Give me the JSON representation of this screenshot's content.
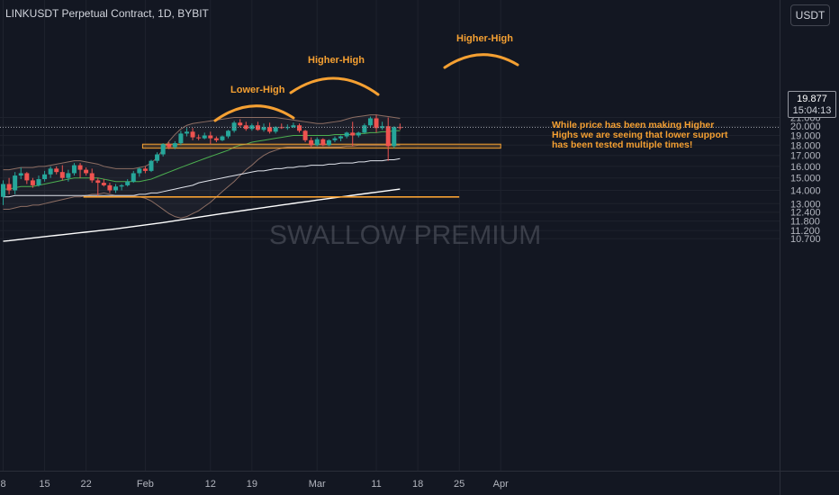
{
  "header": {
    "symbol_title": "LINKUSDT Perpetual Contract, 1D, BYBIT",
    "currency_button": "USDT"
  },
  "price_tag": {
    "price": "19.877",
    "countdown": "15:04:13"
  },
  "watermark": "SWALLOW PREMIUM",
  "annotations": {
    "lower_high": "Lower-High",
    "higher_high_1": "Higher-High",
    "higher_high_2": "Higher-High",
    "note": "While price has been making Higher\nHighs we are seeing that lower support\nhas been tested multiple times!"
  },
  "colors": {
    "background": "#131722",
    "up": "#26a69a",
    "down": "#ef5350",
    "annotation": "#f5a032",
    "bb_basis": "#4caf50",
    "bb_band": "#8d6e63",
    "ma": "#e0e3eb"
  },
  "chart_data": {
    "type": "candlestick",
    "title": "LINKUSDT Perpetual Contract, 1D, BYBIT",
    "y_scale": "log",
    "ylim": [
      10.4,
      22.3
    ],
    "y_ticks": [
      21.0,
      20.0,
      19.0,
      18.0,
      17.0,
      16.0,
      15.0,
      14.0,
      13.0,
      12.4,
      11.8,
      11.2,
      10.7
    ],
    "y_tick_labels": [
      "21.000",
      "20.000",
      "19.000",
      "18.000",
      "17.000",
      "16.000",
      "15.000",
      "14.000",
      "13.000",
      "12.400",
      "11.800",
      "11.200",
      "10.700"
    ],
    "x_tick_labels": [
      "8",
      "15",
      "22",
      "Feb",
      "12",
      "19",
      "Mar",
      "11",
      "18",
      "25",
      "Apr"
    ],
    "x_tick_dates": [
      "2024-01-08",
      "2024-01-15",
      "2024-01-22",
      "2024-02-01",
      "2024-02-12",
      "2024-02-19",
      "2024-03-01",
      "2024-03-11",
      "2024-03-18",
      "2024-03-25",
      "2024-04-01"
    ],
    "last_price": 19.877,
    "candles": [
      {
        "date": "2024-01-08",
        "o": 13.5,
        "h": 14.8,
        "l": 12.9,
        "c": 14.5
      },
      {
        "date": "2024-01-09",
        "o": 14.5,
        "h": 15.0,
        "l": 13.7,
        "c": 14.0
      },
      {
        "date": "2024-01-10",
        "o": 14.0,
        "h": 15.5,
        "l": 13.7,
        "c": 15.2
      },
      {
        "date": "2024-01-11",
        "o": 15.2,
        "h": 15.9,
        "l": 14.9,
        "c": 15.4
      },
      {
        "date": "2024-01-12",
        "o": 15.4,
        "h": 15.5,
        "l": 14.5,
        "c": 14.8
      },
      {
        "date": "2024-01-13",
        "o": 14.8,
        "h": 15.0,
        "l": 14.2,
        "c": 14.4
      },
      {
        "date": "2024-01-14",
        "o": 14.4,
        "h": 15.2,
        "l": 14.3,
        "c": 14.9
      },
      {
        "date": "2024-01-15",
        "o": 14.9,
        "h": 15.6,
        "l": 14.7,
        "c": 15.3
      },
      {
        "date": "2024-01-16",
        "o": 15.3,
        "h": 16.0,
        "l": 15.0,
        "c": 15.8
      },
      {
        "date": "2024-01-17",
        "o": 15.8,
        "h": 16.0,
        "l": 15.3,
        "c": 15.5
      },
      {
        "date": "2024-01-18",
        "o": 15.5,
        "h": 16.1,
        "l": 14.8,
        "c": 15.0
      },
      {
        "date": "2024-01-19",
        "o": 15.0,
        "h": 15.7,
        "l": 14.7,
        "c": 15.4
      },
      {
        "date": "2024-01-20",
        "o": 15.4,
        "h": 16.3,
        "l": 15.2,
        "c": 16.1
      },
      {
        "date": "2024-01-21",
        "o": 16.1,
        "h": 16.3,
        "l": 15.0,
        "c": 15.7
      },
      {
        "date": "2024-01-22",
        "o": 15.7,
        "h": 15.9,
        "l": 15.2,
        "c": 15.4
      },
      {
        "date": "2024-01-23",
        "o": 15.4,
        "h": 15.8,
        "l": 14.6,
        "c": 14.8
      },
      {
        "date": "2024-01-24",
        "o": 14.8,
        "h": 15.0,
        "l": 13.6,
        "c": 14.6
      },
      {
        "date": "2024-01-25",
        "o": 14.6,
        "h": 14.9,
        "l": 14.3,
        "c": 14.4
      },
      {
        "date": "2024-01-26",
        "o": 14.4,
        "h": 14.6,
        "l": 13.8,
        "c": 14.0
      },
      {
        "date": "2024-01-27",
        "o": 14.0,
        "h": 14.5,
        "l": 13.8,
        "c": 14.3
      },
      {
        "date": "2024-01-28",
        "o": 14.3,
        "h": 14.5,
        "l": 14.0,
        "c": 14.4
      },
      {
        "date": "2024-01-29",
        "o": 14.4,
        "h": 14.9,
        "l": 14.3,
        "c": 14.7
      },
      {
        "date": "2024-01-30",
        "o": 14.7,
        "h": 15.6,
        "l": 14.6,
        "c": 15.4
      },
      {
        "date": "2024-01-31",
        "o": 15.4,
        "h": 15.9,
        "l": 15.1,
        "c": 15.8
      },
      {
        "date": "2024-02-01",
        "o": 15.8,
        "h": 16.0,
        "l": 15.4,
        "c": 15.6
      },
      {
        "date": "2024-02-02",
        "o": 15.6,
        "h": 16.6,
        "l": 15.5,
        "c": 16.5
      },
      {
        "date": "2024-02-03",
        "o": 16.5,
        "h": 17.3,
        "l": 16.3,
        "c": 17.1
      },
      {
        "date": "2024-02-04",
        "o": 17.1,
        "h": 18.2,
        "l": 16.9,
        "c": 18.1
      },
      {
        "date": "2024-02-05",
        "o": 18.1,
        "h": 18.3,
        "l": 17.6,
        "c": 17.8
      },
      {
        "date": "2024-02-06",
        "o": 17.8,
        "h": 18.4,
        "l": 17.6,
        "c": 18.2
      },
      {
        "date": "2024-02-07",
        "o": 18.2,
        "h": 19.5,
        "l": 18.0,
        "c": 19.2
      },
      {
        "date": "2024-02-08",
        "o": 19.2,
        "h": 19.8,
        "l": 18.9,
        "c": 19.4
      },
      {
        "date": "2024-02-09",
        "o": 19.4,
        "h": 19.8,
        "l": 18.5,
        "c": 18.8
      },
      {
        "date": "2024-02-10",
        "o": 18.8,
        "h": 19.1,
        "l": 18.5,
        "c": 18.7
      },
      {
        "date": "2024-02-11",
        "o": 18.7,
        "h": 19.3,
        "l": 18.6,
        "c": 19.0
      },
      {
        "date": "2024-02-12",
        "o": 19.0,
        "h": 19.4,
        "l": 18.1,
        "c": 18.7
      },
      {
        "date": "2024-02-13",
        "o": 18.7,
        "h": 18.9,
        "l": 18.3,
        "c": 18.5
      },
      {
        "date": "2024-02-14",
        "o": 18.5,
        "h": 19.0,
        "l": 18.4,
        "c": 18.9
      },
      {
        "date": "2024-02-15",
        "o": 18.9,
        "h": 19.6,
        "l": 18.7,
        "c": 19.5
      },
      {
        "date": "2024-02-16",
        "o": 19.5,
        "h": 20.6,
        "l": 19.3,
        "c": 20.4
      },
      {
        "date": "2024-02-17",
        "o": 20.4,
        "h": 20.8,
        "l": 19.9,
        "c": 20.1
      },
      {
        "date": "2024-02-18",
        "o": 20.1,
        "h": 20.5,
        "l": 19.5,
        "c": 19.7
      },
      {
        "date": "2024-02-19",
        "o": 19.7,
        "h": 20.3,
        "l": 19.5,
        "c": 20.1
      },
      {
        "date": "2024-02-20",
        "o": 20.1,
        "h": 20.5,
        "l": 19.5,
        "c": 19.6
      },
      {
        "date": "2024-02-21",
        "o": 19.6,
        "h": 20.3,
        "l": 19.4,
        "c": 19.9
      },
      {
        "date": "2024-02-22",
        "o": 19.9,
        "h": 20.4,
        "l": 19.2,
        "c": 19.4
      },
      {
        "date": "2024-02-23",
        "o": 19.4,
        "h": 20.0,
        "l": 19.2,
        "c": 19.9
      },
      {
        "date": "2024-02-24",
        "o": 19.9,
        "h": 20.3,
        "l": 19.7,
        "c": 19.8
      },
      {
        "date": "2024-02-25",
        "o": 19.8,
        "h": 20.2,
        "l": 19.6,
        "c": 19.9
      },
      {
        "date": "2024-02-26",
        "o": 19.9,
        "h": 20.4,
        "l": 19.8,
        "c": 20.1
      },
      {
        "date": "2024-02-27",
        "o": 20.1,
        "h": 20.3,
        "l": 19.3,
        "c": 19.5
      },
      {
        "date": "2024-02-28",
        "o": 19.5,
        "h": 19.6,
        "l": 18.3,
        "c": 18.5
      },
      {
        "date": "2024-02-29",
        "o": 18.5,
        "h": 18.8,
        "l": 17.8,
        "c": 18.0
      },
      {
        "date": "2024-03-01",
        "o": 18.0,
        "h": 18.8,
        "l": 17.9,
        "c": 18.6
      },
      {
        "date": "2024-03-02",
        "o": 18.6,
        "h": 18.7,
        "l": 17.9,
        "c": 18.0
      },
      {
        "date": "2024-03-03",
        "o": 18.0,
        "h": 18.6,
        "l": 17.9,
        "c": 18.5
      },
      {
        "date": "2024-03-04",
        "o": 18.5,
        "h": 18.9,
        "l": 18.3,
        "c": 18.7
      },
      {
        "date": "2024-03-05",
        "o": 18.7,
        "h": 19.0,
        "l": 18.4,
        "c": 18.9
      },
      {
        "date": "2024-03-06",
        "o": 18.9,
        "h": 19.4,
        "l": 18.7,
        "c": 19.3
      },
      {
        "date": "2024-03-07",
        "o": 19.3,
        "h": 20.5,
        "l": 17.9,
        "c": 19.0
      },
      {
        "date": "2024-03-08",
        "o": 19.0,
        "h": 19.4,
        "l": 18.8,
        "c": 19.3
      },
      {
        "date": "2024-03-09",
        "o": 19.3,
        "h": 20.3,
        "l": 19.2,
        "c": 20.1
      },
      {
        "date": "2024-03-10",
        "o": 20.1,
        "h": 21.1,
        "l": 19.9,
        "c": 20.9
      },
      {
        "date": "2024-03-11",
        "o": 20.9,
        "h": 21.3,
        "l": 19.3,
        "c": 19.8
      },
      {
        "date": "2024-03-12",
        "o": 19.8,
        "h": 20.5,
        "l": 19.6,
        "c": 20.0
      },
      {
        "date": "2024-03-13",
        "o": 20.0,
        "h": 21.0,
        "l": 16.5,
        "c": 17.9
      },
      {
        "date": "2024-03-14",
        "o": 17.9,
        "h": 20.0,
        "l": 17.7,
        "c": 19.9
      },
      {
        "date": "2024-03-15",
        "o": 19.9,
        "h": 20.3,
        "l": 19.6,
        "c": 19.877
      }
    ],
    "series": [
      {
        "name": "",
        "type": "line",
        "y": [
          14.1,
          14.1,
          14.2,
          14.3,
          14.3,
          14.3,
          14.4,
          14.5,
          14.6,
          14.7,
          14.8,
          14.9,
          15.0,
          15.0,
          15.0,
          15.0,
          15.0,
          14.9,
          14.8,
          14.7,
          14.7,
          14.7,
          14.7,
          14.7,
          14.8,
          14.9,
          15.1,
          15.3,
          15.5,
          15.7,
          15.9,
          16.1,
          16.3,
          16.5,
          16.7,
          16.9,
          17.1,
          17.3,
          17.5,
          17.8,
          18.0,
          18.1,
          18.3,
          18.4,
          18.5,
          18.6,
          18.7,
          18.8,
          18.9,
          19.0,
          19.0,
          19.0,
          19.0,
          19.0,
          19.0,
          19.0,
          19.1,
          19.1,
          19.1,
          19.1,
          19.2,
          19.2,
          19.3,
          19.3,
          19.4,
          19.4,
          19.5,
          19.5
        ]
      },
      {
        "name": "",
        "type": "line",
        "y": [
          15.7,
          15.7,
          15.8,
          15.9,
          15.9,
          15.9,
          16.0,
          16.0,
          16.1,
          16.2,
          16.3,
          16.4,
          16.5,
          16.5,
          16.4,
          16.3,
          16.2,
          16.0,
          15.9,
          15.8,
          15.8,
          15.8,
          15.8,
          15.9,
          16.0,
          16.3,
          16.8,
          17.6,
          18.4,
          19.1,
          19.7,
          20.1,
          20.3,
          20.4,
          20.5,
          20.6,
          20.7,
          20.8,
          20.9,
          21.0,
          21.0,
          21.0,
          21.0,
          21.0,
          21.0,
          21.0,
          21.0,
          20.9,
          20.8,
          20.7,
          20.6,
          20.5,
          20.4,
          20.3,
          20.3,
          20.4,
          20.5,
          20.6,
          20.8,
          21.0,
          21.1,
          21.2,
          21.3,
          21.3,
          21.2,
          21.1,
          21.0,
          20.9
        ]
      },
      {
        "name": "",
        "type": "line",
        "y": [
          12.6,
          12.6,
          12.7,
          12.8,
          12.8,
          12.9,
          12.9,
          13.0,
          13.1,
          13.2,
          13.3,
          13.4,
          13.5,
          13.5,
          13.6,
          13.7,
          13.7,
          13.8,
          13.7,
          13.6,
          13.6,
          13.6,
          13.6,
          13.5,
          13.4,
          13.2,
          12.9,
          12.6,
          12.3,
          12.1,
          12.0,
          12.1,
          12.3,
          12.5,
          12.8,
          13.1,
          13.5,
          13.9,
          14.3,
          14.7,
          15.2,
          15.7,
          16.1,
          16.6,
          17.0,
          17.3,
          17.5,
          17.7,
          17.8,
          17.8,
          17.8,
          17.8,
          17.8,
          17.8,
          17.8,
          17.8,
          17.8,
          17.8,
          17.9,
          17.9,
          18.0,
          18.0,
          18.0,
          18.0,
          18.0,
          18.0,
          18.0,
          18.0
        ]
      },
      {
        "name": "",
        "type": "line",
        "y": [
          13.5,
          13.5,
          13.6,
          13.6,
          13.6,
          13.6,
          13.6,
          13.6,
          13.6,
          13.6,
          13.6,
          13.6,
          13.6,
          13.6,
          13.6,
          13.6,
          13.6,
          13.6,
          13.6,
          13.6,
          13.6,
          13.6,
          13.6,
          13.7,
          13.7,
          13.8,
          13.8,
          13.9,
          14.0,
          14.1,
          14.2,
          14.3,
          14.4,
          14.6,
          14.7,
          14.8,
          14.9,
          15.0,
          15.1,
          15.2,
          15.3,
          15.4,
          15.5,
          15.6,
          15.6,
          15.7,
          15.8,
          15.8,
          15.9,
          15.9,
          16.0,
          16.0,
          16.1,
          16.1,
          16.1,
          16.2,
          16.2,
          16.3,
          16.3,
          16.3,
          16.4,
          16.4,
          16.5,
          16.5,
          16.5,
          16.6,
          16.6,
          16.7
        ]
      },
      {
        "name": "",
        "type": "line",
        "y": [
          10.55,
          10.58,
          10.62,
          10.66,
          10.7,
          10.74,
          10.78,
          10.82,
          10.86,
          10.9,
          10.94,
          10.98,
          11.02,
          11.06,
          11.1,
          11.14,
          11.18,
          11.22,
          11.26,
          11.3,
          11.35,
          11.4,
          11.45,
          11.5,
          11.55,
          11.6,
          11.65,
          11.7,
          11.76,
          11.82,
          11.88,
          11.94,
          12.0,
          12.06,
          12.12,
          12.18,
          12.24,
          12.3,
          12.36,
          12.42,
          12.48,
          12.54,
          12.6,
          12.66,
          12.72,
          12.78,
          12.84,
          12.9,
          12.96,
          13.02,
          13.08,
          13.14,
          13.2,
          13.26,
          13.32,
          13.38,
          13.44,
          13.5,
          13.56,
          13.62,
          13.68,
          13.74,
          13.8,
          13.86,
          13.92,
          13.98,
          14.04,
          14.1
        ]
      }
    ],
    "levels": [
      {
        "type": "zone",
        "top": 18.1,
        "bottom": 17.7,
        "from": "2024-02-01",
        "to": "2024-04-01"
      },
      {
        "type": "line",
        "value": 13.5,
        "from": "2024-01-22",
        "to": "2024-03-25"
      }
    ]
  }
}
